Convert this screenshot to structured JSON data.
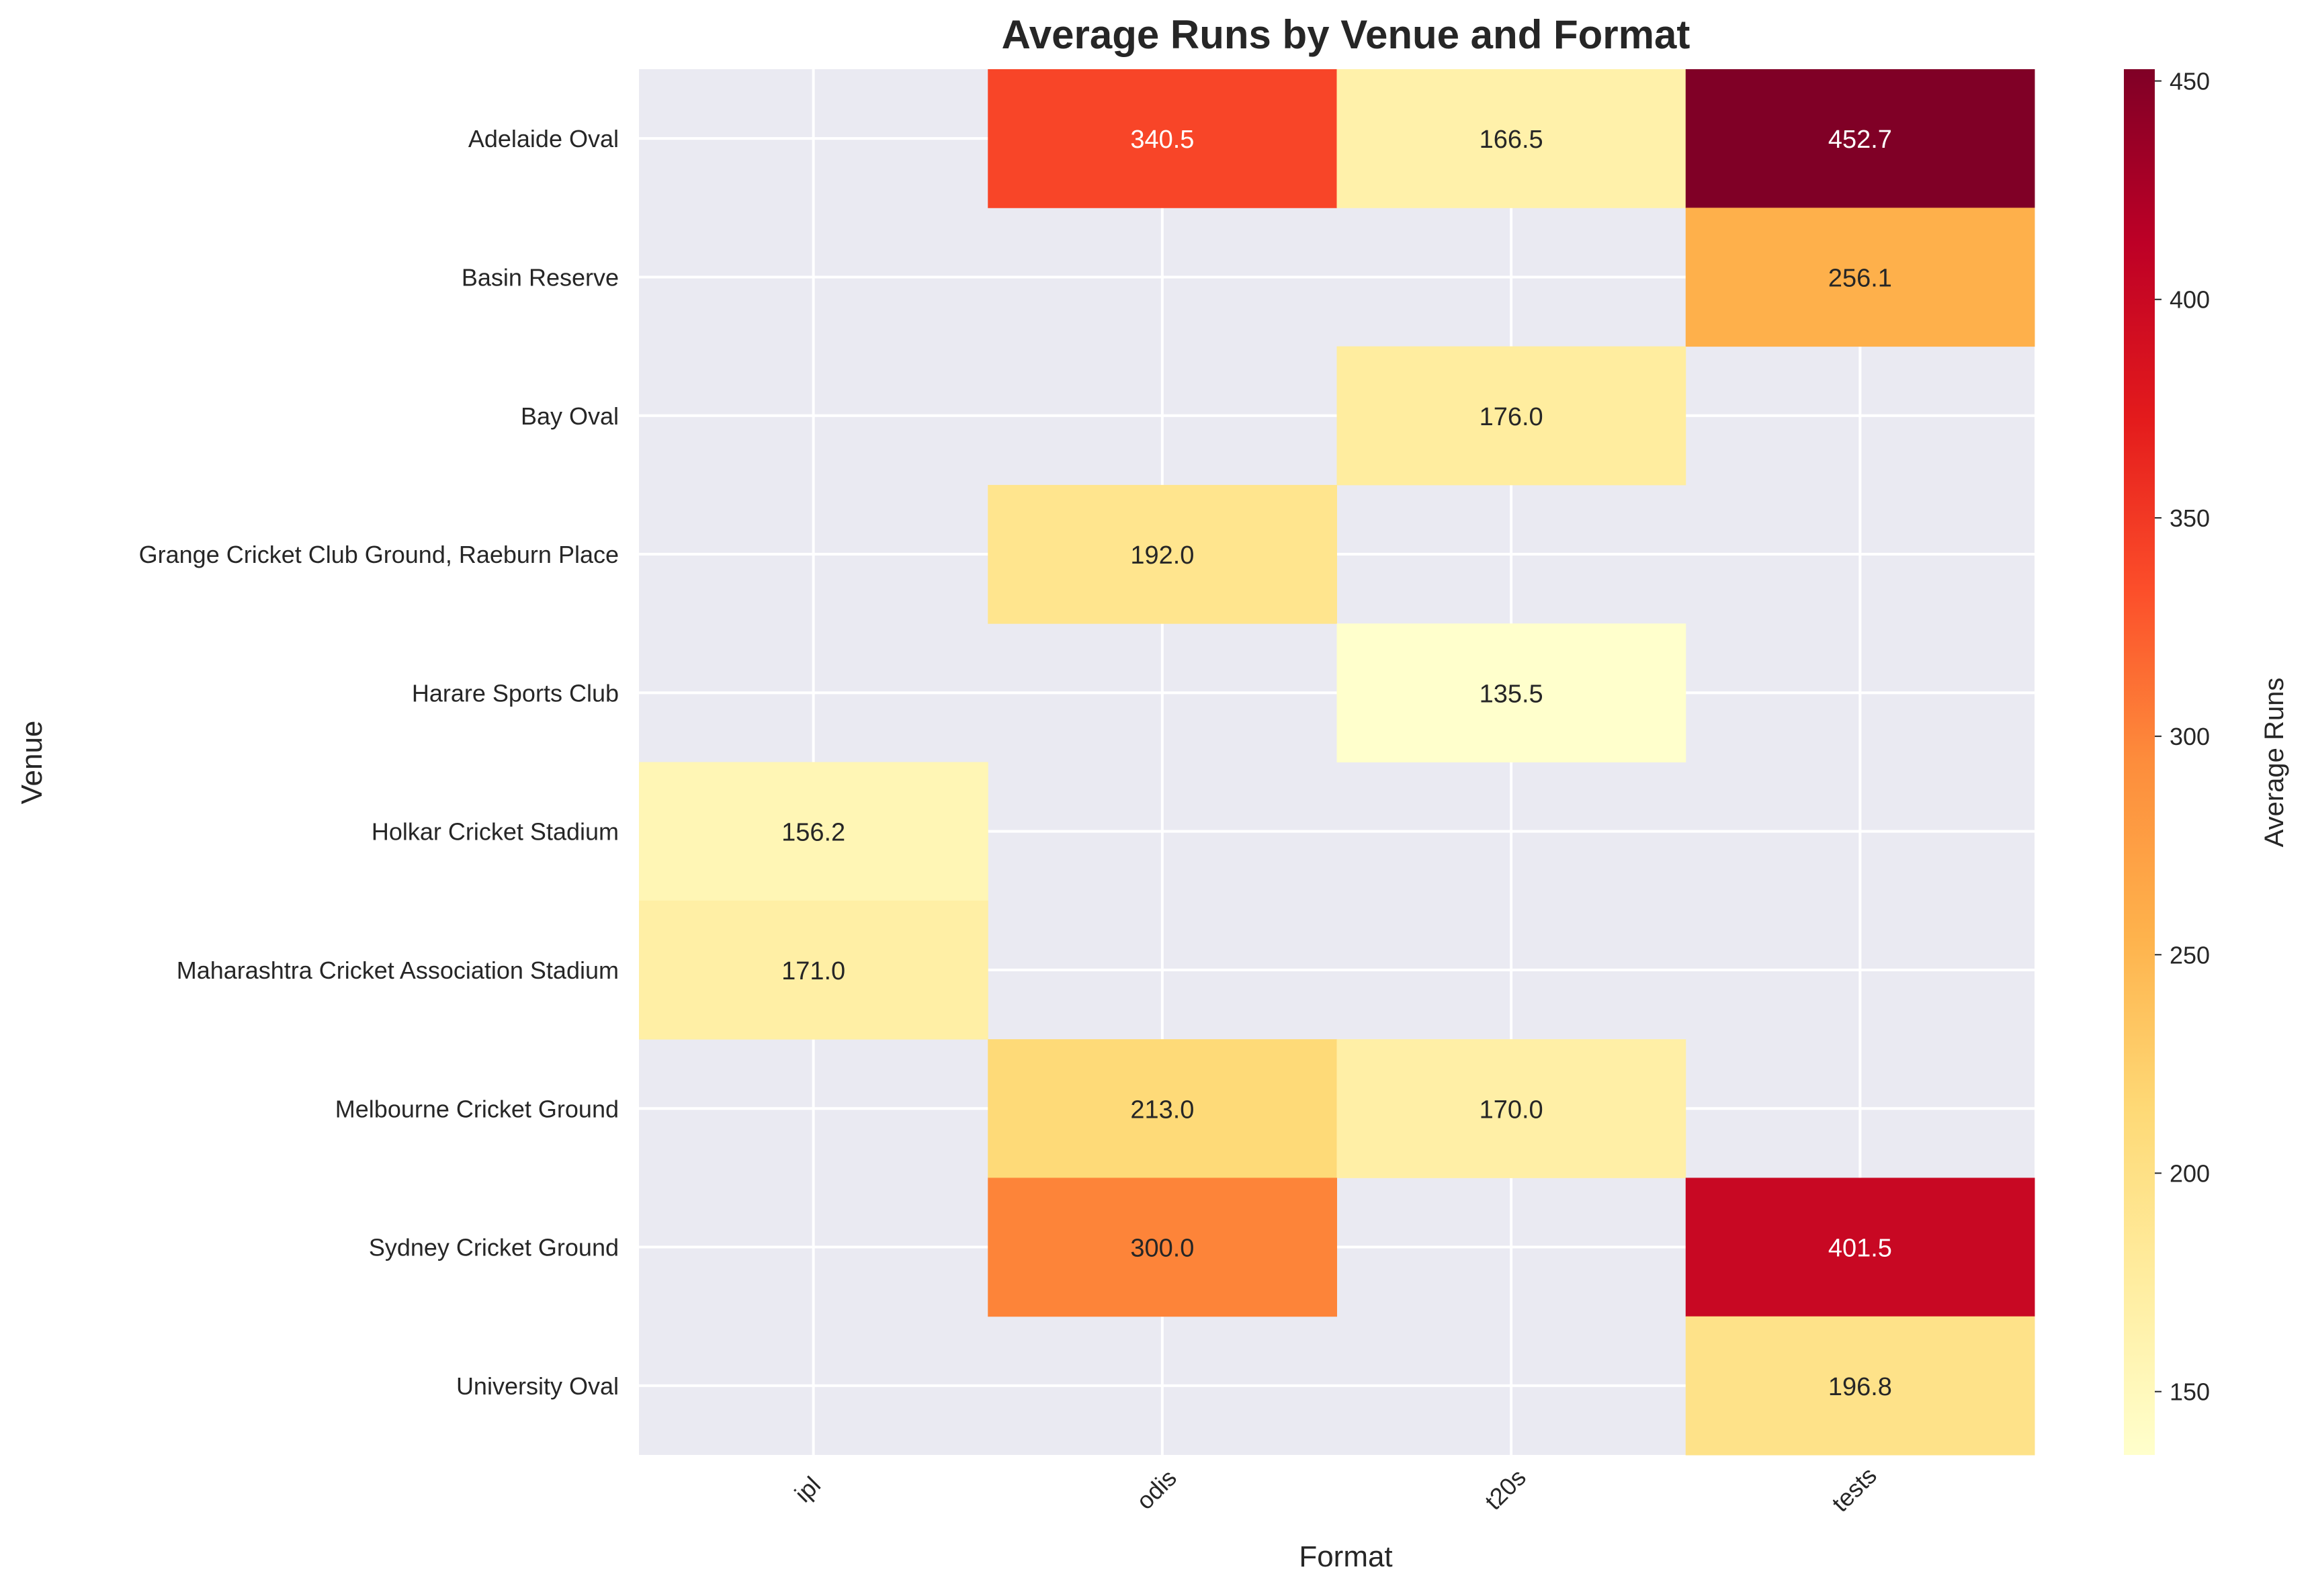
{
  "chart_data": {
    "type": "heatmap",
    "title": "Average Runs by Venue and Format",
    "xlabel": "Format",
    "ylabel": "Venue",
    "x_categories": [
      "ipl",
      "odis",
      "t20s",
      "tests"
    ],
    "y_categories": [
      "Adelaide Oval",
      "Basin Reserve",
      "Bay Oval",
      "Grange Cricket Club Ground, Raeburn Place",
      "Harare Sports Club",
      "Holkar Cricket Stadium",
      "Maharashtra Cricket Association Stadium",
      "Melbourne Cricket Ground",
      "Sydney Cricket Ground",
      "University Oval"
    ],
    "values": [
      [
        null,
        340.5,
        166.5,
        452.7
      ],
      [
        null,
        null,
        null,
        256.1
      ],
      [
        null,
        null,
        176.0,
        null
      ],
      [
        null,
        192.0,
        null,
        null
      ],
      [
        null,
        null,
        135.5,
        null
      ],
      [
        156.2,
        null,
        null,
        null
      ],
      [
        171.0,
        null,
        null,
        null
      ],
      [
        null,
        213.0,
        170.0,
        null
      ],
      [
        null,
        300.0,
        null,
        401.5
      ],
      [
        null,
        null,
        null,
        196.8
      ]
    ],
    "colorbar": {
      "label": "Average Runs",
      "colormap": "YlOrRd",
      "vmin": 135.5,
      "vmax": 452.7,
      "ticks": [
        150,
        200,
        250,
        300,
        350,
        400,
        450
      ]
    },
    "grid": true,
    "colors": {
      "missing_background": "#eaeaf2",
      "grid_line": "#ffffff",
      "text_dark": "#262626",
      "text_light": "#ffffff"
    }
  }
}
